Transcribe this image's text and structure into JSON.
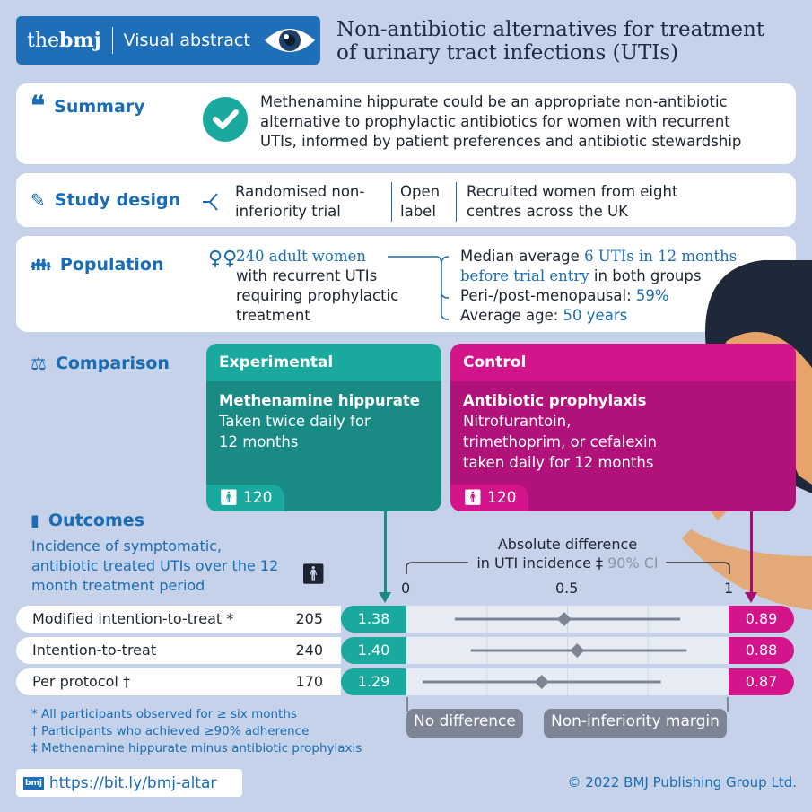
{
  "header": {
    "brand_the": "the",
    "brand_bmj": "bmj",
    "label": "Visual abstract",
    "title_line1": "Non-antibiotic alternatives for treatment",
    "title_line2": "of urinary tract infections (UTIs)"
  },
  "summary": {
    "label": "Summary",
    "text": "Methenamine hippurate could be an appropriate non-antibiotic alternative to prophylactic antibiotics for women with recurrent UTIs, informed by patient preferences and antibiotic stewardship"
  },
  "study_design": {
    "label": "Study design",
    "items": [
      "Randomised non-inferiority trial",
      "Open label",
      "Recruited women from eight centres across the UK"
    ]
  },
  "population": {
    "label": "Population",
    "count": "240 adult women",
    "desc": "with recurrent UTIs requiring prophylactic treatment",
    "median_pre": "Median average ",
    "median_hl": "6 UTIs in 12 months before trial entry",
    "median_post": " in both groups",
    "meno_pre": "Peri-/post-menopausal: ",
    "meno_val": "59%",
    "age_pre": "Average age: ",
    "age_val": "50 years"
  },
  "comparison": {
    "label": "Comparison",
    "experimental": {
      "header": "Experimental",
      "drug": "Methenamine hippurate",
      "desc": "Taken twice daily for 12 months",
      "n": "120",
      "color": "#1aa99f"
    },
    "control": {
      "header": "Control",
      "drug": "Antibiotic prophylaxis",
      "desc": "Nitrofurantoin, trimethoprim, or cefalexin taken daily for 12 months",
      "n": "120",
      "color": "#d4148a"
    }
  },
  "outcomes": {
    "label": "Outcomes",
    "desc": "Incidence of symptomatic, antibiotic treated UTIs over the 12 month treatment period",
    "axis_title1": "Absolute difference",
    "axis_title2": "in UTI incidence ‡",
    "ci_label": "90% CI",
    "ticks": [
      "0",
      "0.5",
      "1"
    ],
    "no_difference": "No difference",
    "margin": "Non-inferiority margin",
    "footnotes": [
      "* All participants observed for ≥ six months",
      "† Participants who achieved ≥90% adherence",
      "‡ Methenamine hippurate minus antibiotic prophylaxis"
    ]
  },
  "chart_data": {
    "type": "forest",
    "xlim": [
      0,
      1
    ],
    "ticks": [
      0,
      0.5,
      1
    ],
    "grid": [
      0.25,
      0.5,
      0.75
    ],
    "rows": [
      {
        "label": "Modified intention-to-treat *",
        "n": "205",
        "experimental": "1.38",
        "control": "0.89",
        "estimate": 0.49,
        "ci": [
          0.15,
          0.85
        ]
      },
      {
        "label": "Intention-to-treat",
        "n": "240",
        "experimental": "1.40",
        "control": "0.88",
        "estimate": 0.53,
        "ci": [
          0.2,
          0.87
        ]
      },
      {
        "label": "Per protocol †",
        "n": "170",
        "experimental": "1.29",
        "control": "0.87",
        "estimate": 0.42,
        "ci": [
          0.05,
          0.79
        ]
      }
    ]
  },
  "footer": {
    "logo": "bmj",
    "url": "https://bit.ly/bmj-altar",
    "copyright": "© 2022 BMJ Publishing Group Ltd."
  }
}
